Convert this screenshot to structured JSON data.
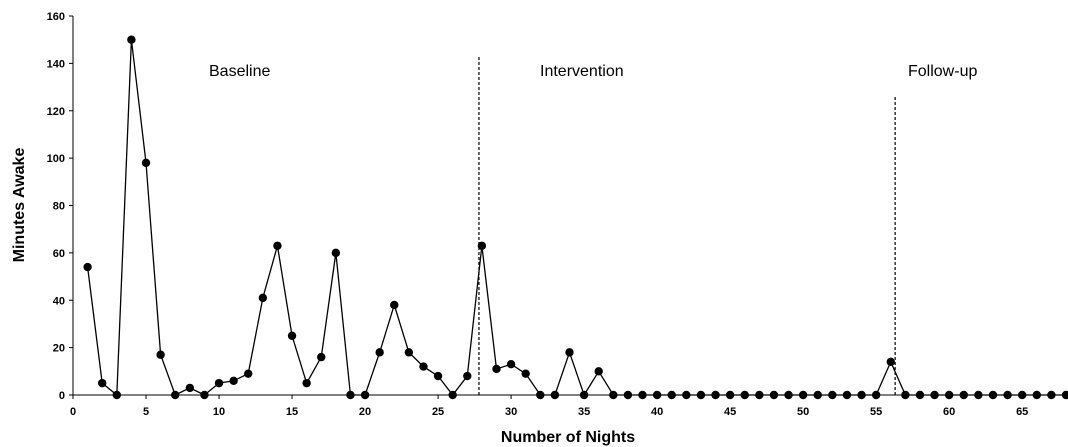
{
  "chart_data": {
    "type": "line",
    "xlabel": "Number of Nights",
    "ylabel": "Minutes Awake",
    "xlim": [
      0,
      68
    ],
    "ylim": [
      0,
      160
    ],
    "x_ticks": [
      0,
      5,
      10,
      15,
      20,
      25,
      30,
      35,
      40,
      45,
      50,
      55,
      60,
      65
    ],
    "y_ticks": [
      0,
      20,
      40,
      60,
      80,
      100,
      120,
      140,
      160
    ],
    "grid": false,
    "legend": "none",
    "marker": "filled-circle",
    "color": "#000000",
    "phase_lines": [
      27.8,
      56.3
    ],
    "phase_labels": [
      "Baseline",
      "Intervention",
      "Follow-up"
    ],
    "series": [
      {
        "x": [
          1,
          2,
          3,
          4,
          5,
          6,
          7,
          8,
          9,
          10,
          11,
          12,
          13,
          14,
          15,
          16,
          17,
          18,
          19,
          20,
          21,
          22,
          23,
          24,
          25,
          26,
          27,
          28,
          29,
          30,
          31,
          32,
          33,
          34,
          35,
          36,
          37,
          38,
          39,
          40,
          41,
          42,
          43,
          44,
          45,
          46,
          47,
          48,
          49,
          50,
          51,
          52,
          53,
          54,
          55,
          56,
          57,
          58,
          59,
          60,
          61,
          62,
          63,
          64,
          65,
          66,
          67,
          68
        ],
        "values": [
          54,
          5,
          0,
          150,
          98,
          17,
          0,
          3,
          0,
          5,
          6,
          9,
          41,
          63,
          25,
          5,
          16,
          60,
          0,
          0,
          18,
          38,
          18,
          12,
          8,
          0,
          8,
          63,
          11,
          13,
          9,
          0,
          0,
          18,
          0,
          10,
          0,
          0,
          0,
          0,
          0,
          0,
          0,
          0,
          0,
          0,
          0,
          0,
          0,
          0,
          0,
          0,
          0,
          0,
          0,
          14,
          0,
          0,
          0,
          0,
          0,
          0,
          0,
          0,
          0,
          0,
          0,
          0
        ]
      }
    ]
  }
}
